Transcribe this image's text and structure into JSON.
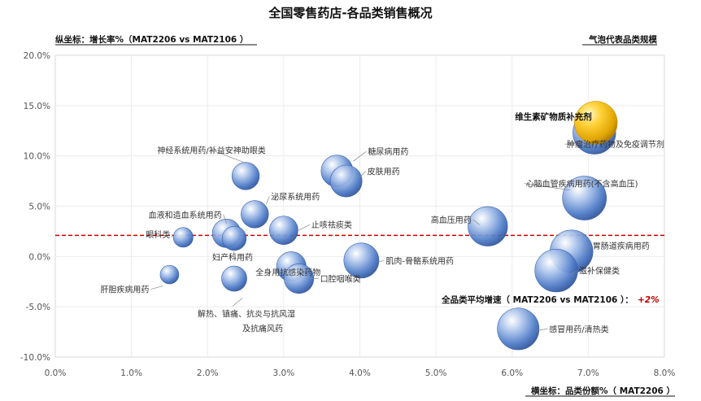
{
  "chart_data": {
    "type": "scatter",
    "title": "全国零售药店-各品类销售概况",
    "ylabel": "纵坐标：增长率%（MAT2206 vs MAT2106 ）",
    "xlabel": "横坐标：品类份额%（ MAT2206 ）",
    "bubble_note": "气泡代表品类规模",
    "xlim": [
      0,
      8
    ],
    "ylim": [
      -10,
      20
    ],
    "x_ticks": [
      0,
      1,
      2,
      3,
      4,
      5,
      6,
      7,
      8
    ],
    "x_tick_labels": [
      "0.0%",
      "1.0%",
      "2.0%",
      "3.0%",
      "4.0%",
      "5.0%",
      "6.0%",
      "7.0%",
      "8.0%"
    ],
    "y_ticks": [
      -10,
      -5,
      0,
      5,
      10,
      15,
      20
    ],
    "y_tick_labels": [
      "-10.0%",
      "-5.0%",
      "0.0%",
      "5.0%",
      "10.0%",
      "15.0%",
      "20.0%"
    ],
    "average": {
      "y": 2.1,
      "label": "全品类平均增速（ MAT2206 vs MAT2106 ）：",
      "value_label": "+2%"
    },
    "colors": {
      "bubble": "#4a78c6",
      "highlight": "#f0b800",
      "avg_line": "#cc0000"
    },
    "points": [
      {
        "name": "眼科类",
        "x": 1.68,
        "y": 1.9,
        "size": 0.9
      },
      {
        "name": "肝胆疾病用药",
        "x": 1.5,
        "y": -1.8,
        "size": 0.85
      },
      {
        "name": "血液和造血系统用药",
        "x": 2.25,
        "y": 2.3,
        "size": 1.3
      },
      {
        "name": "妇产科用药",
        "x": 2.35,
        "y": 1.8,
        "size": 1.1
      },
      {
        "name": "解热、镇痛、抗炎与抗风湿及抗痛风药",
        "x": 2.35,
        "y": -2.2,
        "size": 1.15
      },
      {
        "name": "神经系统用药/补益安神助眼类",
        "x": 2.5,
        "y": 8.0,
        "size": 1.25
      },
      {
        "name": "泌尿系统用药",
        "x": 2.62,
        "y": 4.2,
        "size": 1.25
      },
      {
        "name": "止咳祛痰类",
        "x": 3.0,
        "y": 2.6,
        "size": 1.3
      },
      {
        "name": "全身用抗感染药物",
        "x": 3.1,
        "y": -1.0,
        "size": 1.35
      },
      {
        "name": "口腔咽喉类",
        "x": 3.2,
        "y": -2.2,
        "size": 1.35
      },
      {
        "name": "糖尿病用药",
        "x": 3.7,
        "y": 8.5,
        "size": 1.45
      },
      {
        "name": "皮肤用药",
        "x": 3.82,
        "y": 7.5,
        "size": 1.45
      },
      {
        "name": "肌肉-骨骼系统用药",
        "x": 4.02,
        "y": -0.4,
        "size": 1.6
      },
      {
        "name": "高血压用药",
        "x": 5.68,
        "y": 3.0,
        "size": 1.8
      },
      {
        "name": "感冒用药/清热类",
        "x": 6.08,
        "y": -7.2,
        "size": 1.9
      },
      {
        "name": "胃肠道疾病用药",
        "x": 6.78,
        "y": 0.5,
        "size": 1.95
      },
      {
        "name": "滋补保健类",
        "x": 6.58,
        "y": -1.4,
        "size": 1.95
      },
      {
        "name": "心脑血管疾病用药(不含高血压)",
        "x": 6.95,
        "y": 5.8,
        "size": 2.0
      },
      {
        "name": "肿瘤治疗药物及免疫调节剂",
        "x": 7.08,
        "y": 12.3,
        "size": 1.95
      },
      {
        "name": "维生素矿物质补充剂",
        "x": 7.1,
        "y": 13.3,
        "size": 1.95,
        "highlight": true
      }
    ]
  }
}
